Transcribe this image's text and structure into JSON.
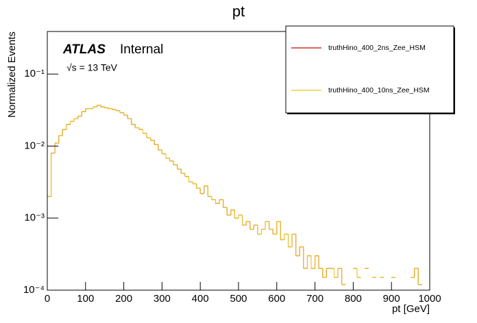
{
  "chart_data": {
    "type": "histogram",
    "title": "pt",
    "x_label": "pt [GeV]",
    "y_label": "Normalized Events",
    "annotations": [
      "ATLAS",
      "Internal",
      "√s = 13 TeV"
    ],
    "log_y": true,
    "xlim": [
      0,
      1000
    ],
    "ylim": [
      0.0001,
      0.39
    ],
    "xticks": [
      0,
      100,
      200,
      300,
      400,
      500,
      600,
      700,
      800,
      900,
      1000
    ],
    "yticks": [
      {
        "value": 0.0001,
        "label": "10⁻⁴"
      },
      {
        "value": 0.001,
        "label": "10⁻³"
      },
      {
        "value": 0.01,
        "label": "10⁻²"
      },
      {
        "value": 0.1,
        "label": "10⁻¹"
      }
    ],
    "bins": [
      0,
      10,
      20,
      30,
      40,
      50,
      60,
      70,
      80,
      90,
      100,
      110,
      120,
      130,
      140,
      150,
      160,
      170,
      180,
      190,
      200,
      210,
      220,
      230,
      240,
      250,
      260,
      270,
      280,
      290,
      300,
      310,
      320,
      330,
      340,
      350,
      360,
      370,
      380,
      390,
      400,
      410,
      420,
      430,
      440,
      450,
      460,
      470,
      480,
      490,
      500,
      510,
      520,
      530,
      540,
      550,
      560,
      570,
      580,
      590,
      600,
      610,
      620,
      630,
      640,
      650,
      660,
      670,
      680,
      690,
      700,
      710,
      720,
      730,
      740,
      750,
      760,
      770,
      780,
      790,
      800,
      810,
      820,
      830,
      840,
      850,
      860,
      870,
      880,
      890,
      900,
      910,
      920,
      930,
      940,
      950,
      960,
      970,
      980,
      990,
      1000
    ],
    "series": [
      {
        "name": "truthHino_400_2ns_Zee_HSM",
        "color": "#cc0000",
        "values": [
          0.002,
          0.008,
          0.011,
          0.014,
          0.017,
          0.02,
          0.022,
          0.024,
          0.026,
          0.03,
          0.033,
          0.033,
          0.035,
          0.037,
          0.035,
          0.034,
          0.033,
          0.032,
          0.031,
          0.029,
          0.027,
          0.024,
          0.02,
          0.018,
          0.017,
          0.015,
          0.013,
          0.012,
          0.0105,
          0.0088,
          0.0078,
          0.0068,
          0.0062,
          0.0055,
          0.0048,
          0.0042,
          0.0038,
          0.0032,
          0.003,
          0.0026,
          0.0022,
          0.0028,
          0.002,
          0.0018,
          0.0016,
          0.0018,
          0.0014,
          0.0011,
          0.0013,
          0.001,
          0.0011,
          0.0008,
          0.0009,
          0.0007,
          0.0008,
          0.0006,
          0.0007,
          0.0009,
          0.0007,
          0.0006,
          0.0009,
          0.0005,
          0.0006,
          0.0004,
          0.0006,
          0.0003,
          0.0004,
          0.0002,
          0.0003,
          0.0002,
          0.0003,
          0.0002,
          0.00015,
          0.0002,
          0.0002,
          0.00015,
          0.0002,
          0.00012,
          null,
          null,
          0.0002,
          0.00015,
          null,
          0.0002,
          null,
          0.00015,
          null,
          0.00015,
          null,
          null,
          0.00015,
          null,
          null,
          null,
          null,
          0.00015,
          0.0002,
          0.00012,
          null,
          null
        ]
      },
      {
        "name": "truthHino_400_10ns_Zee_HSM",
        "color": "#e8c51c",
        "values": [
          0.002,
          0.008,
          0.011,
          0.014,
          0.017,
          0.02,
          0.022,
          0.024,
          0.026,
          0.03,
          0.033,
          0.033,
          0.035,
          0.037,
          0.035,
          0.034,
          0.033,
          0.032,
          0.031,
          0.029,
          0.027,
          0.024,
          0.02,
          0.018,
          0.017,
          0.015,
          0.013,
          0.012,
          0.0105,
          0.0088,
          0.0078,
          0.0068,
          0.0062,
          0.0055,
          0.0048,
          0.0042,
          0.0038,
          0.0032,
          0.003,
          0.0026,
          0.0022,
          0.0028,
          0.002,
          0.0018,
          0.0016,
          0.0018,
          0.0014,
          0.0011,
          0.0013,
          0.001,
          0.0011,
          0.0008,
          0.0009,
          0.0007,
          0.0008,
          0.0006,
          0.0007,
          0.0009,
          0.0007,
          0.0006,
          0.0009,
          0.0005,
          0.0006,
          0.0004,
          0.0006,
          0.0003,
          0.0004,
          0.0002,
          0.0003,
          0.0002,
          0.0003,
          0.0002,
          0.00015,
          0.0002,
          0.0002,
          0.00015,
          0.0002,
          0.00012,
          null,
          null,
          0.0002,
          0.00015,
          null,
          0.0002,
          null,
          0.00015,
          null,
          0.00015,
          null,
          null,
          0.00015,
          null,
          null,
          null,
          null,
          0.00015,
          0.0002,
          0.00012,
          null,
          null
        ]
      }
    ]
  }
}
